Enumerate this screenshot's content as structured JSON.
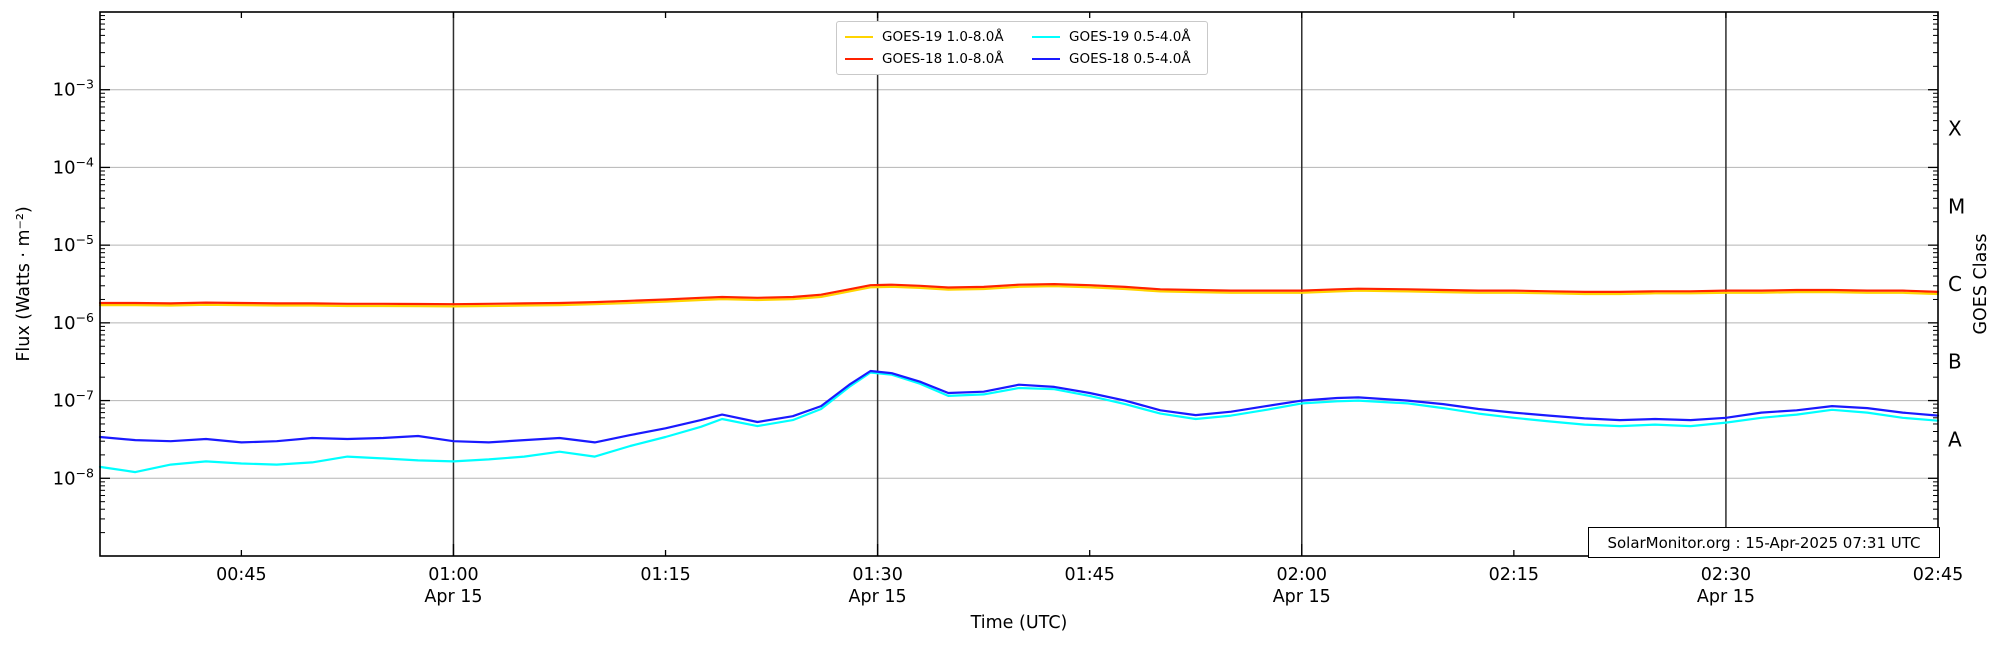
{
  "figure": {
    "background": "#ffffff",
    "frame_color": "#000000"
  },
  "chart_data": {
    "type": "line",
    "title": "",
    "xlabel": "Time (UTC)",
    "ylabel": "Flux (Watts · m⁻²)",
    "right_axis_label": "GOES Class",
    "y_scale": "log",
    "ylim": [
      1e-09,
      0.01
    ],
    "x_range_minutes_utc": [
      35,
      165
    ],
    "x_axis_date_label": "Apr 15",
    "grid": {
      "h_gridline_color": "#b5b5b5",
      "v_line_color": "#2e2e2e"
    },
    "legend_position": "top-center",
    "y_tick_exponents": [
      -3,
      -4,
      -5,
      -6,
      -7,
      -8
    ],
    "horizontal_gridline_exponents": [
      -3,
      -4,
      -5,
      -6,
      -7,
      -8
    ],
    "vertical_gridlines_minutes": [
      60,
      90,
      120,
      150
    ],
    "x_ticks": [
      {
        "minute": 45,
        "label": "00:45"
      },
      {
        "minute": 60,
        "label": "01:00",
        "date": "Apr 15"
      },
      {
        "minute": 75,
        "label": "01:15"
      },
      {
        "minute": 90,
        "label": "01:30",
        "date": "Apr 15"
      },
      {
        "minute": 105,
        "label": "01:45"
      },
      {
        "minute": 120,
        "label": "02:00",
        "date": "Apr 15"
      },
      {
        "minute": 135,
        "label": "02:15"
      },
      {
        "minute": 150,
        "label": "02:30",
        "date": "Apr 15"
      },
      {
        "minute": 165,
        "label": "02:45"
      }
    ],
    "goes_classes": [
      {
        "label": "X",
        "log10_flux_center": -3.5
      },
      {
        "label": "M",
        "log10_flux_center": -4.5
      },
      {
        "label": "C",
        "log10_flux_center": -5.5
      },
      {
        "label": "B",
        "log10_flux_center": -6.5
      },
      {
        "label": "A",
        "log10_flux_center": -7.5
      }
    ],
    "x_minutes": [
      35,
      37.5,
      40,
      42.5,
      45,
      47.5,
      50,
      52.5,
      55,
      57.5,
      60,
      62.5,
      65,
      67.5,
      70,
      72.5,
      75,
      77.5,
      79,
      81.5,
      84,
      86,
      88,
      89.5,
      91,
      93,
      95,
      97.5,
      100,
      102.5,
      105,
      107.5,
      110,
      112.5,
      115,
      117.5,
      120,
      122.5,
      124,
      127.5,
      130,
      132.5,
      135,
      137.5,
      140,
      142.5,
      145,
      147.5,
      150,
      152.5,
      155,
      157.5,
      160,
      162.5,
      165
    ],
    "series": [
      {
        "name": "GOES-19 1.0-8.0Å",
        "color": "#ffd400",
        "values": [
          1.69e-06,
          1.69e-06,
          1.67e-06,
          1.71e-06,
          1.69e-06,
          1.67e-06,
          1.67e-06,
          1.65e-06,
          1.65e-06,
          1.64e-06,
          1.63e-06,
          1.65e-06,
          1.67e-06,
          1.69e-06,
          1.74e-06,
          1.8e-06,
          1.88e-06,
          1.97e-06,
          2.02e-06,
          1.97e-06,
          2.02e-06,
          2.16e-06,
          2.54e-06,
          2.87e-06,
          2.91e-06,
          2.82e-06,
          2.68e-06,
          2.73e-06,
          2.91e-06,
          2.96e-06,
          2.87e-06,
          2.73e-06,
          2.54e-06,
          2.49e-06,
          2.44e-06,
          2.44e-06,
          2.44e-06,
          2.54e-06,
          2.59e-06,
          2.54e-06,
          2.49e-06,
          2.44e-06,
          2.44e-06,
          2.4e-06,
          2.35e-06,
          2.35e-06,
          2.4e-06,
          2.4e-06,
          2.44e-06,
          2.44e-06,
          2.49e-06,
          2.49e-06,
          2.44e-06,
          2.44e-06,
          2.35e-06
        ]
      },
      {
        "name": "GOES-18 1.0-8.0Å",
        "color": "#ff2200",
        "values": [
          1.8e-06,
          1.8e-06,
          1.78e-06,
          1.82e-06,
          1.8e-06,
          1.78e-06,
          1.78e-06,
          1.76e-06,
          1.76e-06,
          1.75e-06,
          1.74e-06,
          1.76e-06,
          1.78e-06,
          1.8e-06,
          1.85e-06,
          1.92e-06,
          2e-06,
          2.1e-06,
          2.15e-06,
          2.1e-06,
          2.15e-06,
          2.3e-06,
          2.7e-06,
          3.05e-06,
          3.1e-06,
          3e-06,
          2.85e-06,
          2.9e-06,
          3.1e-06,
          3.15e-06,
          3.05e-06,
          2.9e-06,
          2.7e-06,
          2.65e-06,
          2.6e-06,
          2.6e-06,
          2.6e-06,
          2.7e-06,
          2.75e-06,
          2.7e-06,
          2.65e-06,
          2.6e-06,
          2.6e-06,
          2.55e-06,
          2.5e-06,
          2.5e-06,
          2.55e-06,
          2.55e-06,
          2.6e-06,
          2.6e-06,
          2.65e-06,
          2.65e-06,
          2.6e-06,
          2.6e-06,
          2.5e-06
        ]
      },
      {
        "name": "GOES-19 0.5-4.0Å",
        "color": "#00ffff",
        "values": [
          1.4e-08,
          1.2e-08,
          1.5e-08,
          1.65e-08,
          1.55e-08,
          1.5e-08,
          1.6e-08,
          1.9e-08,
          1.8e-08,
          1.7e-08,
          1.65e-08,
          1.75e-08,
          1.9e-08,
          2.2e-08,
          1.9e-08,
          2.6e-08,
          3.4e-08,
          4.6e-08,
          5.8e-08,
          4.7e-08,
          5.6e-08,
          7.8e-08,
          1.5e-07,
          2.3e-07,
          2.15e-07,
          1.65e-07,
          1.15e-07,
          1.2e-07,
          1.45e-07,
          1.4e-07,
          1.15e-07,
          9e-08,
          6.8e-08,
          5.8e-08,
          6.4e-08,
          7.6e-08,
          9.2e-08,
          9.8e-08,
          1e-07,
          9.2e-08,
          8e-08,
          6.8e-08,
          6e-08,
          5.4e-08,
          4.9e-08,
          4.7e-08,
          4.9e-08,
          4.7e-08,
          5.2e-08,
          6e-08,
          6.6e-08,
          7.6e-08,
          7e-08,
          6e-08,
          5.5e-08
        ]
      },
      {
        "name": "GOES-18 0.5-4.0Å",
        "color": "#1a1aff",
        "values": [
          3.4e-08,
          3.1e-08,
          3e-08,
          3.2e-08,
          2.9e-08,
          3e-08,
          3.3e-08,
          3.2e-08,
          3.3e-08,
          3.5e-08,
          3e-08,
          2.9e-08,
          3.1e-08,
          3.3e-08,
          2.9e-08,
          3.6e-08,
          4.4e-08,
          5.6e-08,
          6.6e-08,
          5.3e-08,
          6.3e-08,
          8.5e-08,
          1.6e-07,
          2.4e-07,
          2.25e-07,
          1.75e-07,
          1.25e-07,
          1.3e-07,
          1.6e-07,
          1.5e-07,
          1.25e-07,
          1e-07,
          7.5e-08,
          6.5e-08,
          7.2e-08,
          8.5e-08,
          1e-07,
          1.08e-07,
          1.1e-07,
          1e-07,
          9e-08,
          7.8e-08,
          7e-08,
          6.4e-08,
          5.9e-08,
          5.6e-08,
          5.8e-08,
          5.6e-08,
          6e-08,
          7e-08,
          7.5e-08,
          8.5e-08,
          8e-08,
          7e-08,
          6.4e-08
        ]
      }
    ],
    "annotation": "SolarMonitor.org : 15-Apr-2025 07:31 UTC"
  }
}
